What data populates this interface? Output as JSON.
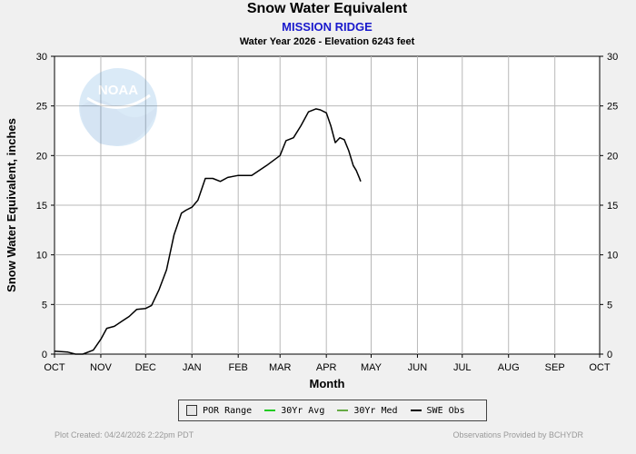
{
  "chart_data": {
    "type": "line",
    "title": "Snow Water Equivalent",
    "subtitle": "MISSION RIDGE",
    "subtitle2": "Water Year 2026 -  Elevation 6243 feet",
    "xlabel": "Month",
    "ylabel": "Snow Water Equivalent, inches",
    "ylim": [
      0,
      30
    ],
    "yticks": [
      "0",
      "5",
      "10",
      "15",
      "20",
      "25",
      "30"
    ],
    "categories": [
      "OCT",
      "NOV",
      "DEC",
      "JAN",
      "FEB",
      "MAR",
      "APR",
      "MAY",
      "JUN",
      "JUL",
      "AUG",
      "SEP",
      "OCT"
    ],
    "grid": true,
    "legend_position": "bottom",
    "legend": [
      "POR Range",
      "30Yr Avg",
      "30Yr Med",
      "SWE Obs"
    ],
    "colors": {
      "por": "#e6e6e6",
      "avg": "#22cc22",
      "med": "#66aa44",
      "obs": "#000000"
    },
    "series": [
      {
        "name": "SWE Obs",
        "x": [
          "2025-10-01",
          "2025-10-10",
          "2025-10-15",
          "2025-10-20",
          "2025-10-27",
          "2025-11-01",
          "2025-11-05",
          "2025-11-10",
          "2025-11-15",
          "2025-11-20",
          "2025-11-25",
          "2025-12-01",
          "2025-12-05",
          "2025-12-10",
          "2025-12-15",
          "2025-12-20",
          "2025-12-25",
          "2025-12-28",
          "2026-01-01",
          "2026-01-05",
          "2026-01-10",
          "2026-01-15",
          "2026-01-20",
          "2026-01-25",
          "2026-02-01",
          "2026-02-10",
          "2026-02-20",
          "2026-03-01",
          "2026-03-05",
          "2026-03-10",
          "2026-03-15",
          "2026-03-20",
          "2026-03-25",
          "2026-03-28",
          "2026-04-01",
          "2026-04-04",
          "2026-04-07",
          "2026-04-10",
          "2026-04-13",
          "2026-04-16",
          "2026-04-19",
          "2026-04-21",
          "2026-04-23",
          "2026-04-24"
        ],
        "values": [
          0.3,
          0.2,
          0,
          0,
          0.4,
          1.5,
          2.6,
          2.8,
          3.3,
          3.8,
          4.5,
          4.6,
          4.9,
          6.5,
          8.5,
          12.0,
          14.2,
          14.5,
          14.8,
          15.5,
          17.7,
          17.7,
          17.4,
          17.8,
          18.0,
          18.0,
          19.0,
          20.0,
          21.5,
          21.8,
          23.0,
          24.4,
          24.7,
          24.6,
          24.3,
          23.0,
          21.3,
          21.8,
          21.6,
          20.5,
          19.0,
          18.5,
          17.8,
          17.4
        ]
      }
    ],
    "footer_left": "Plot Created: 04/24/2026 2:22pm PDT",
    "footer_right": "Observations Provided by BCHYDR",
    "logo_text": "NOAA"
  }
}
